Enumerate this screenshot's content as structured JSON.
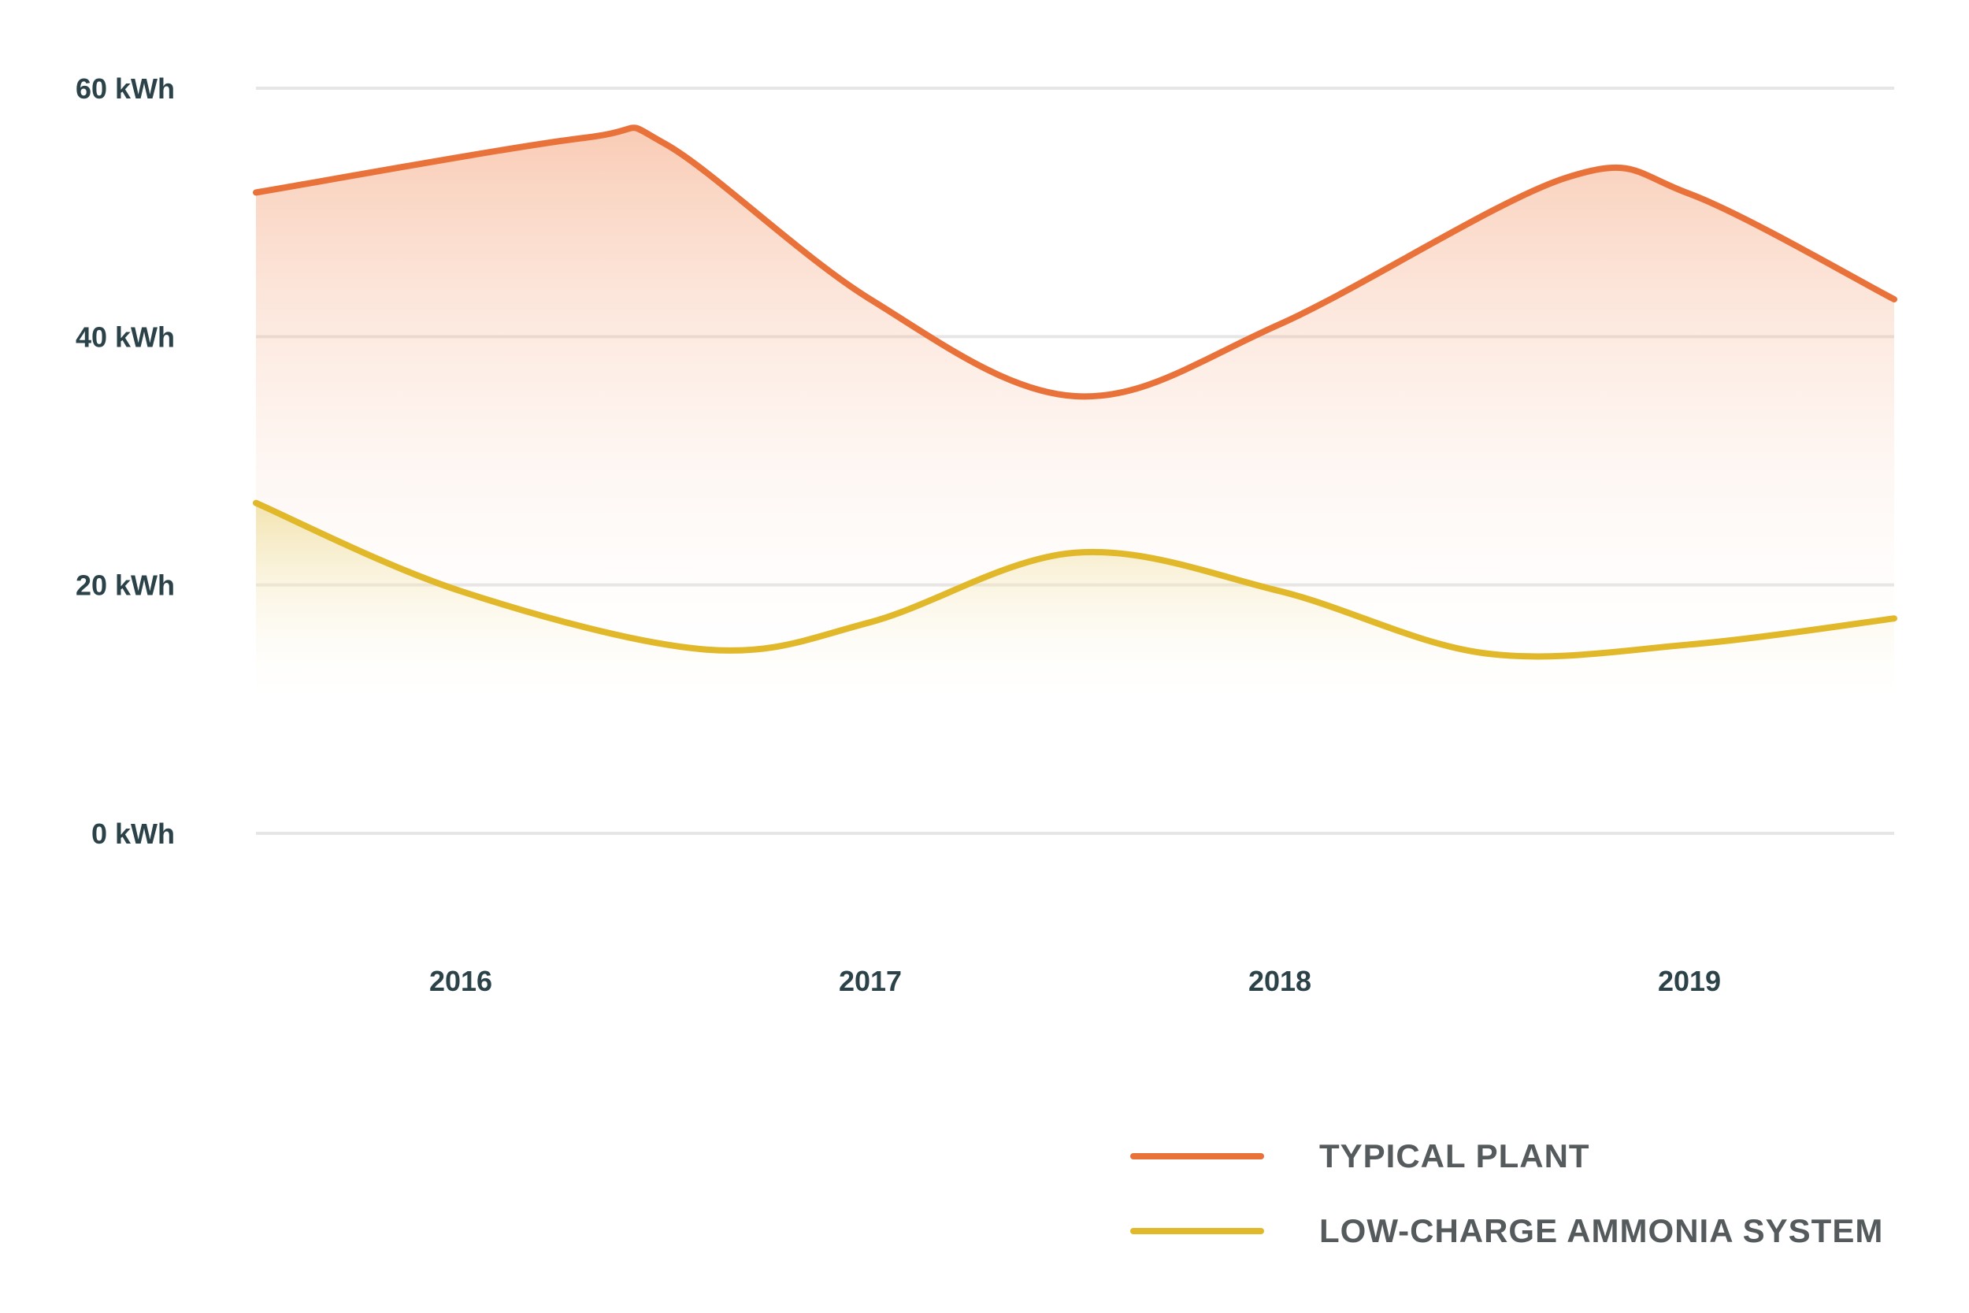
{
  "chart_data": {
    "type": "line",
    "x": [
      "2016",
      "2017",
      "2018",
      "2019"
    ],
    "y_ticks": [
      "0 kWh",
      "20 kWh",
      "40 kWh",
      "60 kWh"
    ],
    "ylim": [
      0,
      60
    ],
    "grid": true,
    "legend_position": "bottom-right",
    "series": [
      {
        "name": "TYPICAL PLANT",
        "color": "#e8723a",
        "points": [
          [
            2015.5,
            51.6
          ],
          [
            2016.3,
            56.0
          ],
          [
            2016.5,
            55.5
          ],
          [
            2017.0,
            43.0
          ],
          [
            2017.5,
            35.2
          ],
          [
            2018.0,
            41.0
          ],
          [
            2018.7,
            52.8
          ],
          [
            2019.0,
            51.5
          ],
          [
            2019.5,
            43.0
          ]
        ]
      },
      {
        "name": "LOW-CHARGE AMMONIA SYSTEM",
        "color": "#e1b829",
        "points": [
          [
            2015.5,
            26.6
          ],
          [
            2016.0,
            19.5
          ],
          [
            2016.6,
            14.8
          ],
          [
            2017.0,
            17.0
          ],
          [
            2017.5,
            22.6
          ],
          [
            2018.0,
            19.5
          ],
          [
            2018.5,
            14.5
          ],
          [
            2019.0,
            15.2
          ],
          [
            2019.5,
            17.3
          ]
        ]
      }
    ]
  }
}
